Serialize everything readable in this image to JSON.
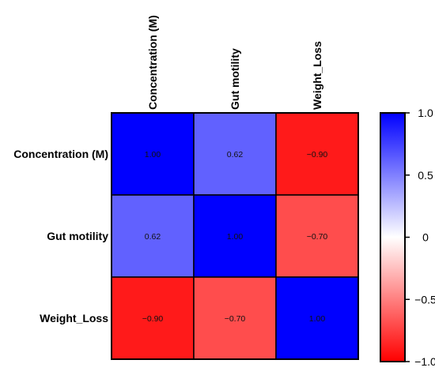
{
  "chart_data": {
    "type": "heatmap",
    "row_labels": [
      "Concentration (M)",
      "Gut motility",
      "Weight_Loss"
    ],
    "col_labels": [
      "Concentration (M)",
      "Gut motility",
      "Weight_Loss"
    ],
    "values": [
      [
        1.0,
        0.62,
        -0.9
      ],
      [
        0.62,
        1.0,
        -0.7
      ],
      [
        -0.9,
        -0.7,
        1.0
      ]
    ],
    "value_labels": [
      [
        "1.00",
        "0.62",
        "−0.90"
      ],
      [
        "0.62",
        "1.00",
        "−0.70"
      ],
      [
        "−0.90",
        "−0.70",
        "1.00"
      ]
    ],
    "colorbar": {
      "range": [
        -1.0,
        1.0
      ],
      "ticks": [
        1.0,
        0.5,
        0,
        -0.5,
        -1.0
      ],
      "tick_labels": [
        "1.0",
        "0.5",
        "0",
        "−0.5",
        "−1.0"
      ],
      "colors": {
        "negative": "#ff0000",
        "zero": "#ffffff",
        "positive": "#0000ff"
      }
    }
  }
}
